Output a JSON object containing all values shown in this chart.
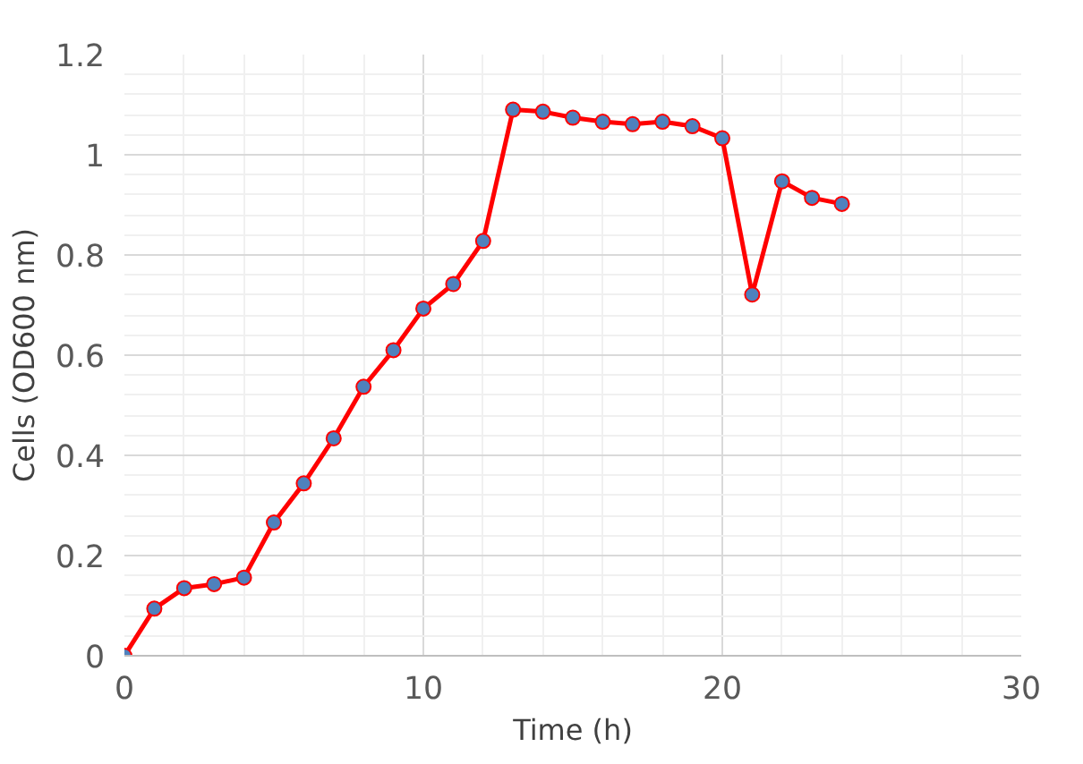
{
  "chart_data": {
    "type": "line",
    "xlabel": "Time (h)",
    "ylabel": "Cells (OD600 nm)",
    "x": [
      0,
      1,
      2,
      3,
      4,
      5,
      6,
      7,
      8,
      9,
      10,
      11,
      12,
      13,
      14,
      15,
      16,
      17,
      18,
      19,
      20,
      21,
      22,
      23,
      24
    ],
    "series": [
      {
        "color": "#ff0000",
        "values": [
          0,
          0.094,
          0.135,
          0.143,
          0.156,
          0.266,
          0.344,
          0.434,
          0.537,
          0.61,
          0.693,
          0.742,
          0.828,
          1.09,
          1.086,
          1.074,
          1.066,
          1.061,
          1.066,
          1.057,
          1.033,
          0.721,
          0.947,
          0.914,
          0.902
        ]
      }
    ],
    "xlim": [
      0,
      30
    ],
    "xticks": [
      0,
      10,
      20,
      30
    ],
    "ylim": [
      0,
      1.2
    ],
    "yticks": [
      0,
      {
        "value": 0.2,
        "label": "0.2"
      },
      {
        "value": 0.4,
        "label": "0.4"
      },
      {
        "value": 0.6,
        "label": "0.6"
      },
      {
        "value": 0.8,
        "label": "0.8"
      },
      1,
      {
        "value": 1.2,
        "label": "1.2"
      }
    ],
    "grid": true,
    "marker": "circle",
    "line_style": "solid"
  }
}
